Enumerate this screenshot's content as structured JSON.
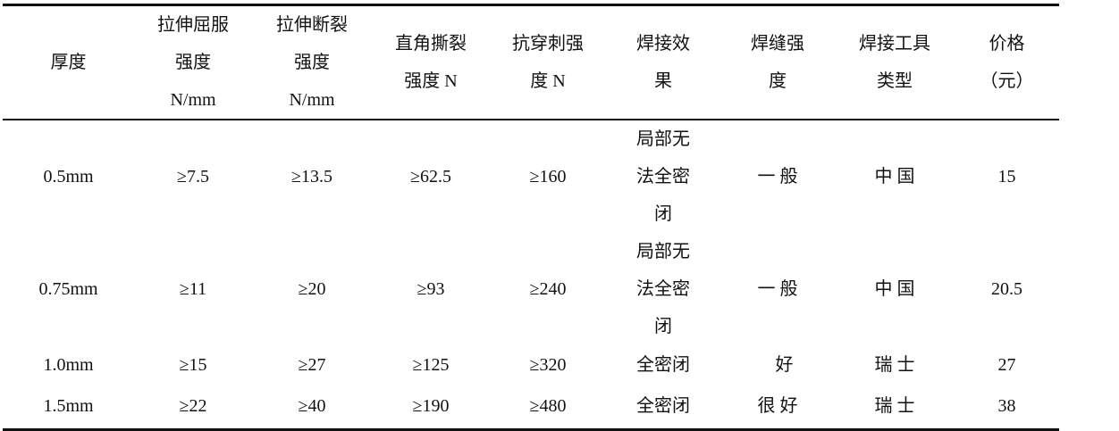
{
  "table": {
    "headers": [
      "厚度",
      "拉伸屈服\n强度\nN/mm",
      "拉伸断裂\n强度\nN/mm",
      "直角撕裂\n强度 N",
      "抗穿刺强\n度 N",
      "焊接效\n果",
      "焊缝强\n度",
      "焊接工具\n类型",
      "价格\n（元）"
    ],
    "rows": [
      [
        "0.5mm",
        "≥7.5",
        "≥13.5",
        "≥62.5",
        "≥160",
        "局部无\n法全密\n闭",
        "一 般",
        "中 国",
        "15"
      ],
      [
        "0.75mm",
        "≥11",
        "≥20",
        "≥93",
        "≥240",
        "局部无\n法全密\n闭",
        "一 般",
        "中 国",
        "20.5"
      ],
      [
        "1.0mm",
        "≥15",
        "≥27",
        "≥125",
        "≥320",
        "全密闭",
        "   好",
        "瑞 士",
        "27"
      ],
      [
        "1.5mm",
        "≥22",
        "≥40",
        "≥190",
        "≥480",
        "全密闭",
        "很 好",
        "瑞 士",
        "38"
      ]
    ]
  }
}
